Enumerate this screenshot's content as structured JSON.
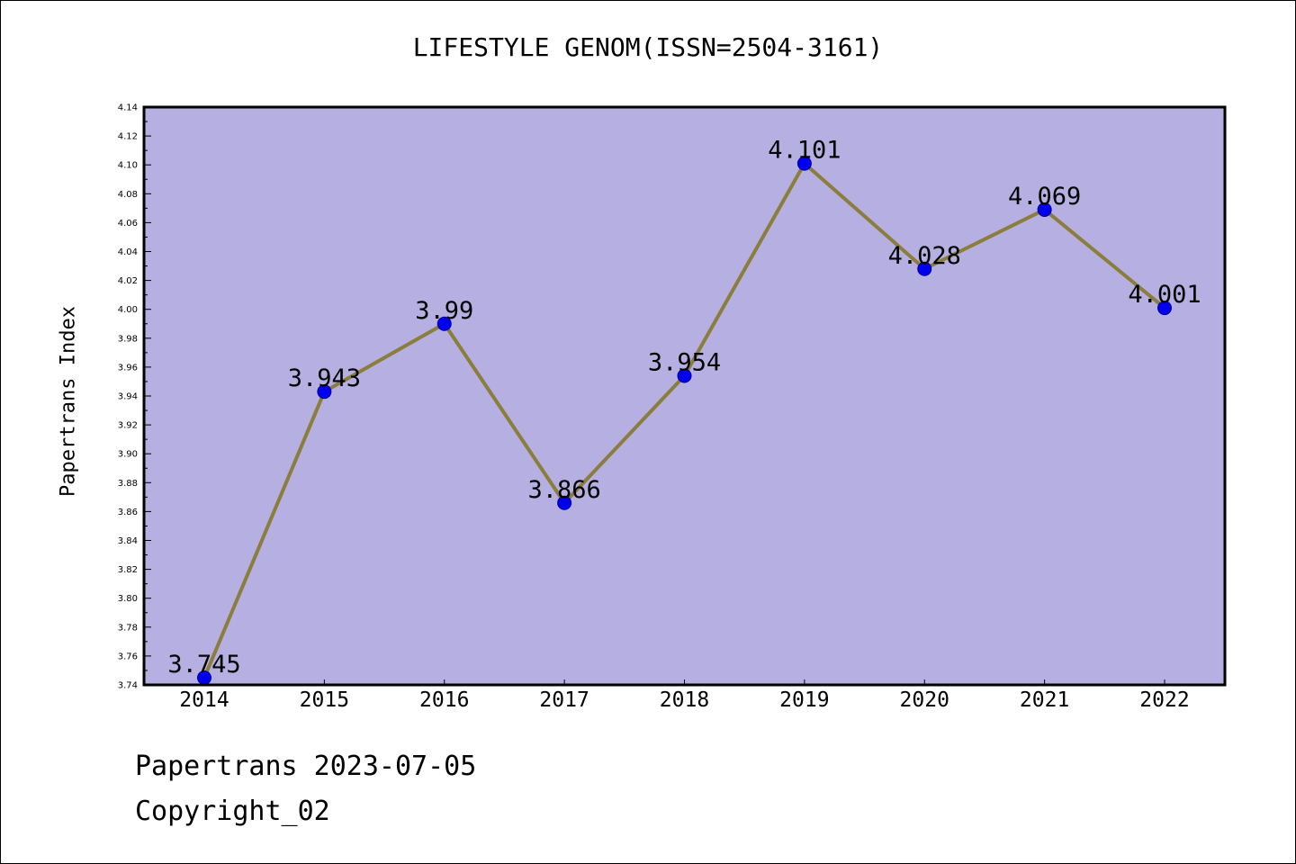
{
  "footer": {
    "line1": "Papertrans 2023-07-05",
    "line2": "Copyright_02"
  },
  "colors": {
    "plot_background": "#b5afe2",
    "line": "#8b7d3b",
    "marker": "#0000ee",
    "marker_edge": "#00008b",
    "axis": "#000000"
  },
  "chart_data": {
    "type": "line",
    "title": "LIFESTYLE GENOM(ISSN=2504-3161)",
    "xlabel": "",
    "ylabel": "Papertrans Index",
    "categories": [
      "2014",
      "2015",
      "2016",
      "2017",
      "2018",
      "2019",
      "2020",
      "2021",
      "2022"
    ],
    "series": [
      {
        "values": [
          3.745,
          3.943,
          3.99,
          3.866,
          3.954,
          4.101,
          4.028,
          4.069,
          4.001
        ],
        "labels": [
          "3.745",
          "3.943",
          "3.99",
          "3.866",
          "3.954",
          "4.101",
          "4.028",
          "4.069",
          "4.001"
        ]
      }
    ],
    "ylim": [
      3.74,
      4.14
    ],
    "yticks": [
      "3.74",
      "3.76",
      "3.78",
      "3.80",
      "3.82",
      "3.84",
      "3.86",
      "3.88",
      "3.90",
      "3.92",
      "3.94",
      "3.96",
      "3.98",
      "4.00",
      "4.02",
      "4.04",
      "4.06",
      "4.08",
      "4.10",
      "4.12",
      "4.14"
    ],
    "grid": false,
    "legend": "none"
  }
}
